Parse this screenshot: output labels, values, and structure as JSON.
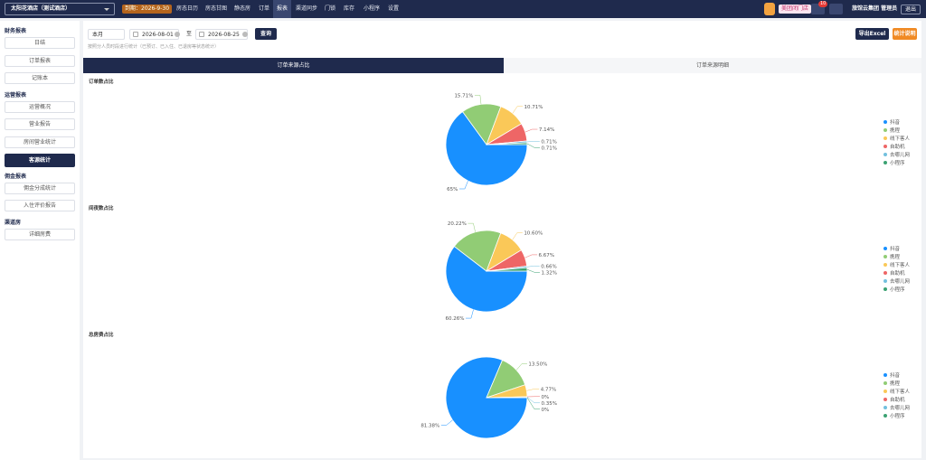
{
  "nav": {
    "hotel": "太阳花酒店（测试酒店）",
    "expiry": "到期：2026-9-30",
    "items": [
      "房态日历",
      "房态甘图",
      "静态房",
      "订单",
      "报表",
      "渠道同步",
      "门锁",
      "库存",
      "小程序",
      "设置"
    ],
    "store_button": "美团闭门店",
    "badge": "10",
    "user": "旅馆云集团 管理员",
    "logout": "退出"
  },
  "sidebar": {
    "groups": [
      {
        "title": "财务报表",
        "items": [
          "日结",
          "订单报表",
          "记账本"
        ]
      },
      {
        "title": "运营报表",
        "items": [
          "运营概况",
          "营业报告",
          "房间营业统计",
          "客源统计"
        ]
      },
      {
        "title": "佣金报表",
        "items": [
          "佣金分成统计",
          "入住评价报告"
        ]
      },
      {
        "title": "渠道房",
        "items": [
          "详细房费"
        ]
      }
    ]
  },
  "filters": {
    "period": "本月",
    "start": "2026-08-01",
    "to": "至",
    "end": "2026-08-25",
    "query": "查询",
    "note": "按照分人员时段进行统计（已预订、已入住、已退房等状态统计）",
    "export": "导出Excel",
    "help": "统计说明"
  },
  "tabs": [
    "订单来源占比",
    "订单来源明细"
  ],
  "chart_data": [
    {
      "type": "pie",
      "title": "订单数占比",
      "categories": [
        "抖音",
        "携程",
        "线下客人",
        "自助机",
        "去哪儿网",
        "小程序"
      ],
      "values": [
        65,
        15.71,
        10.71,
        7.14,
        0.71,
        0.71
      ],
      "value_labels": [
        "65%",
        "15.71%",
        "10.71%",
        "7.14%",
        "0.71%",
        "0.71%"
      ],
      "colors": [
        "#1890ff",
        "#91cc75",
        "#fac858",
        "#ee6666",
        "#73c0de",
        "#3ba272"
      ]
    },
    {
      "type": "pie",
      "title": "间夜数占比",
      "categories": [
        "抖音",
        "携程",
        "线下客人",
        "自助机",
        "去哪儿网",
        "小程序"
      ],
      "values": [
        60.26,
        20.22,
        10.6,
        6.67,
        0.66,
        1.32
      ],
      "value_labels": [
        "60.26%",
        "20.22%",
        "10.60%",
        "6.67%",
        "0.66%",
        "1.32%"
      ],
      "colors": [
        "#1890ff",
        "#91cc75",
        "#fac858",
        "#ee6666",
        "#73c0de",
        "#3ba272"
      ]
    },
    {
      "type": "pie",
      "title": "总房费占比",
      "categories": [
        "抖音",
        "携程",
        "线下客人",
        "自助机",
        "去哪儿网",
        "小程序"
      ],
      "values": [
        81.38,
        13.5,
        4.77,
        0,
        0.35,
        0
      ],
      "value_labels": [
        "81.38%",
        "13.50%",
        "4.77%",
        "0%",
        "0.35%",
        "0%"
      ],
      "colors": [
        "#1890ff",
        "#91cc75",
        "#fac858",
        "#ee6666",
        "#73c0de",
        "#3ba272"
      ]
    }
  ]
}
